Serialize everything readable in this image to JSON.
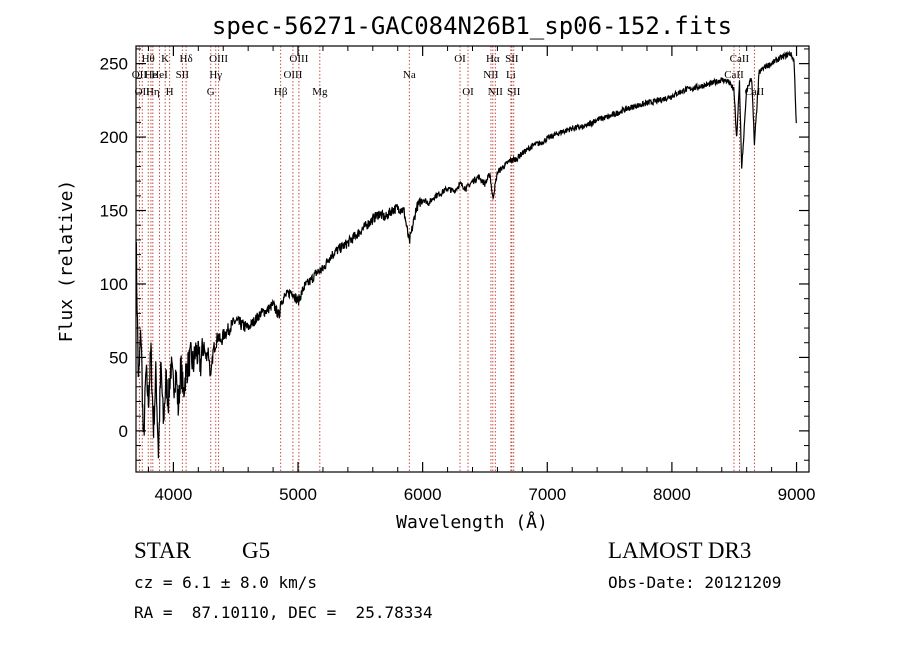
{
  "chart_data": {
    "type": "line",
    "title": "spec-56271-GAC084N26B1_sp06-152.fits",
    "xlabel": "Wavelength (Å)",
    "ylabel": "Flux (relative)",
    "xlim": [
      3700,
      9100
    ],
    "ylim": [
      -28,
      262
    ],
    "x_ticks": [
      {
        "value": 4000,
        "label": "4000"
      },
      {
        "value": 5000,
        "label": "5000"
      },
      {
        "value": 6000,
        "label": "6000"
      },
      {
        "value": 7000,
        "label": "7000"
      },
      {
        "value": 8000,
        "label": "8000"
      },
      {
        "value": 9000,
        "label": "9000"
      }
    ],
    "y_ticks": [
      {
        "value": 0,
        "label": "0"
      },
      {
        "value": 50,
        "label": "50"
      },
      {
        "value": 100,
        "label": "100"
      },
      {
        "value": 150,
        "label": "150"
      },
      {
        "value": 200,
        "label": "200"
      },
      {
        "value": 250,
        "label": "250"
      }
    ],
    "series": [
      {
        "name": "spectrum",
        "x": [
          3700,
          3720,
          3740,
          3760,
          3780,
          3800,
          3820,
          3840,
          3860,
          3880,
          3900,
          3920,
          3940,
          3960,
          3980,
          4000,
          4020,
          4040,
          4060,
          4080,
          4100,
          4120,
          4140,
          4160,
          4180,
          4200,
          4220,
          4240,
          4260,
          4280,
          4300,
          4320,
          4340,
          4360,
          4380,
          4400,
          4450,
          4500,
          4550,
          4600,
          4650,
          4700,
          4750,
          4800,
          4850,
          4861,
          4900,
          4950,
          5000,
          5050,
          5100,
          5150,
          5200,
          5250,
          5300,
          5350,
          5400,
          5450,
          5500,
          5550,
          5600,
          5650,
          5700,
          5750,
          5800,
          5850,
          5893,
          5950,
          6000,
          6050,
          6100,
          6150,
          6200,
          6250,
          6300,
          6350,
          6400,
          6450,
          6500,
          6540,
          6563,
          6600,
          6650,
          6700,
          6750,
          6800,
          6850,
          6900,
          6950,
          7000,
          7100,
          7200,
          7300,
          7400,
          7500,
          7600,
          7700,
          7800,
          7900,
          8000,
          8100,
          8200,
          8300,
          8400,
          8450,
          8498,
          8520,
          8542,
          8560,
          8600,
          8640,
          8662,
          8700,
          8750,
          8800,
          8850,
          8900,
          8950,
          8980,
          9000
        ],
        "y": [
          135,
          30,
          70,
          -10,
          40,
          20,
          55,
          0,
          40,
          -15,
          45,
          5,
          35,
          20,
          45,
          30,
          40,
          15,
          45,
          25,
          40,
          45,
          50,
          45,
          55,
          50,
          45,
          60,
          50,
          55,
          35,
          55,
          60,
          65,
          60,
          65,
          70,
          75,
          72,
          70,
          75,
          80,
          82,
          86,
          78,
          88,
          92,
          95,
          88,
          98,
          102,
          108,
          110,
          118,
          122,
          125,
          128,
          132,
          136,
          140,
          144,
          148,
          145,
          150,
          152,
          150,
          128,
          152,
          158,
          155,
          160,
          162,
          165,
          163,
          168,
          165,
          170,
          173,
          168,
          175,
          158,
          176,
          180,
          184,
          185,
          189,
          192,
          195,
          196,
          199,
          203,
          206,
          207,
          212,
          214,
          218,
          221,
          223,
          225,
          228,
          232,
          234,
          236,
          239,
          238,
          232,
          198,
          238,
          178,
          232,
          241,
          195,
          244,
          248,
          250,
          253,
          255,
          257,
          252,
          205
        ]
      }
    ],
    "lines": [
      {
        "wave": 3727,
        "label": "OII",
        "row": 2
      },
      {
        "wave": 3750,
        "label": "OII",
        "row": 3
      },
      {
        "wave": 3798,
        "label": "Hθ",
        "row": 1
      },
      {
        "wave": 3820,
        "label": "He",
        "row": 2
      },
      {
        "wave": 3835,
        "label": "Hη",
        "row": 3
      },
      {
        "wave": 3889,
        "label": "HeI",
        "row": 2
      },
      {
        "wave": 3934,
        "label": "K",
        "row": 1
      },
      {
        "wave": 3970,
        "label": "H",
        "row": 3
      },
      {
        "wave": 4072,
        "label": "SII",
        "row": 2
      },
      {
        "wave": 4102,
        "label": "Hδ",
        "row": 1
      },
      {
        "wave": 4300,
        "label": "G",
        "row": 3
      },
      {
        "wave": 4340,
        "label": "Hγ",
        "row": 2
      },
      {
        "wave": 4363,
        "label": "OIII",
        "row": 1
      },
      {
        "wave": 4861,
        "label": "Hβ",
        "row": 3
      },
      {
        "wave": 4959,
        "label": "OIII",
        "row": 2
      },
      {
        "wave": 5007,
        "label": "OIII",
        "row": 1
      },
      {
        "wave": 5175,
        "label": "Mg",
        "row": 3
      },
      {
        "wave": 5893,
        "label": "Na",
        "row": 2
      },
      {
        "wave": 6300,
        "label": "OI",
        "row": 1
      },
      {
        "wave": 6364,
        "label": "OI",
        "row": 3
      },
      {
        "wave": 6548,
        "label": "NII",
        "row": 2
      },
      {
        "wave": 6563,
        "label": "Hα",
        "row": 1
      },
      {
        "wave": 6583,
        "label": "NII",
        "row": 3
      },
      {
        "wave": 6708,
        "label": "Li",
        "row": 2
      },
      {
        "wave": 6716,
        "label": "SII",
        "row": 1
      },
      {
        "wave": 6731,
        "label": "SII",
        "row": 3
      },
      {
        "wave": 8498,
        "label": "CaII",
        "row": 2
      },
      {
        "wave": 8542,
        "label": "CaII",
        "row": 1
      },
      {
        "wave": 8662,
        "label": "CaII",
        "row": 3
      }
    ]
  },
  "info": {
    "class_label": "STAR",
    "subclass": "G5",
    "survey": "LAMOST DR3",
    "redshift_text": "cz = 6.1 ± 8.0 km/s",
    "obs_date_text": "Obs-Date: 20121209",
    "coords_text": "RA =  87.10110, DEC =  25.78334"
  }
}
